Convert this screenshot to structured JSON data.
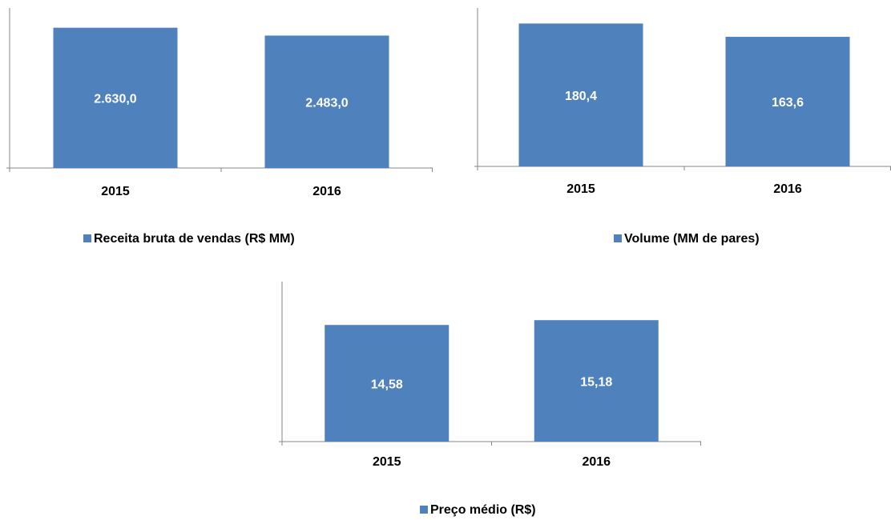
{
  "chart_data": [
    {
      "type": "bar",
      "categories": [
        "2015",
        "2016"
      ],
      "series": [
        {
          "name": "Receita bruta de vendas (R$ MM)",
          "color": "#4f81bd",
          "values": [
            2630.0,
            2483.0
          ],
          "value_labels": [
            "2.630,0",
            "2.483,0"
          ]
        }
      ],
      "ylim": [
        0,
        3000
      ],
      "legend": "bottom"
    },
    {
      "type": "bar",
      "categories": [
        "2015",
        "2016"
      ],
      "series": [
        {
          "name": "Volume (MM de pares)",
          "color": "#4f81bd",
          "values": [
            180.4,
            163.6
          ],
          "value_labels": [
            "180,4",
            "163,6"
          ]
        }
      ],
      "ylim": [
        0,
        200
      ],
      "legend": "bottom"
    },
    {
      "type": "bar",
      "categories": [
        "2015",
        "2016"
      ],
      "series": [
        {
          "name": "Preço médio (R$)",
          "color": "#4f81bd",
          "values": [
            14.58,
            15.18
          ],
          "value_labels": [
            "14,58",
            "15,18"
          ]
        }
      ],
      "ylim": [
        0,
        20
      ],
      "legend": "bottom"
    }
  ]
}
